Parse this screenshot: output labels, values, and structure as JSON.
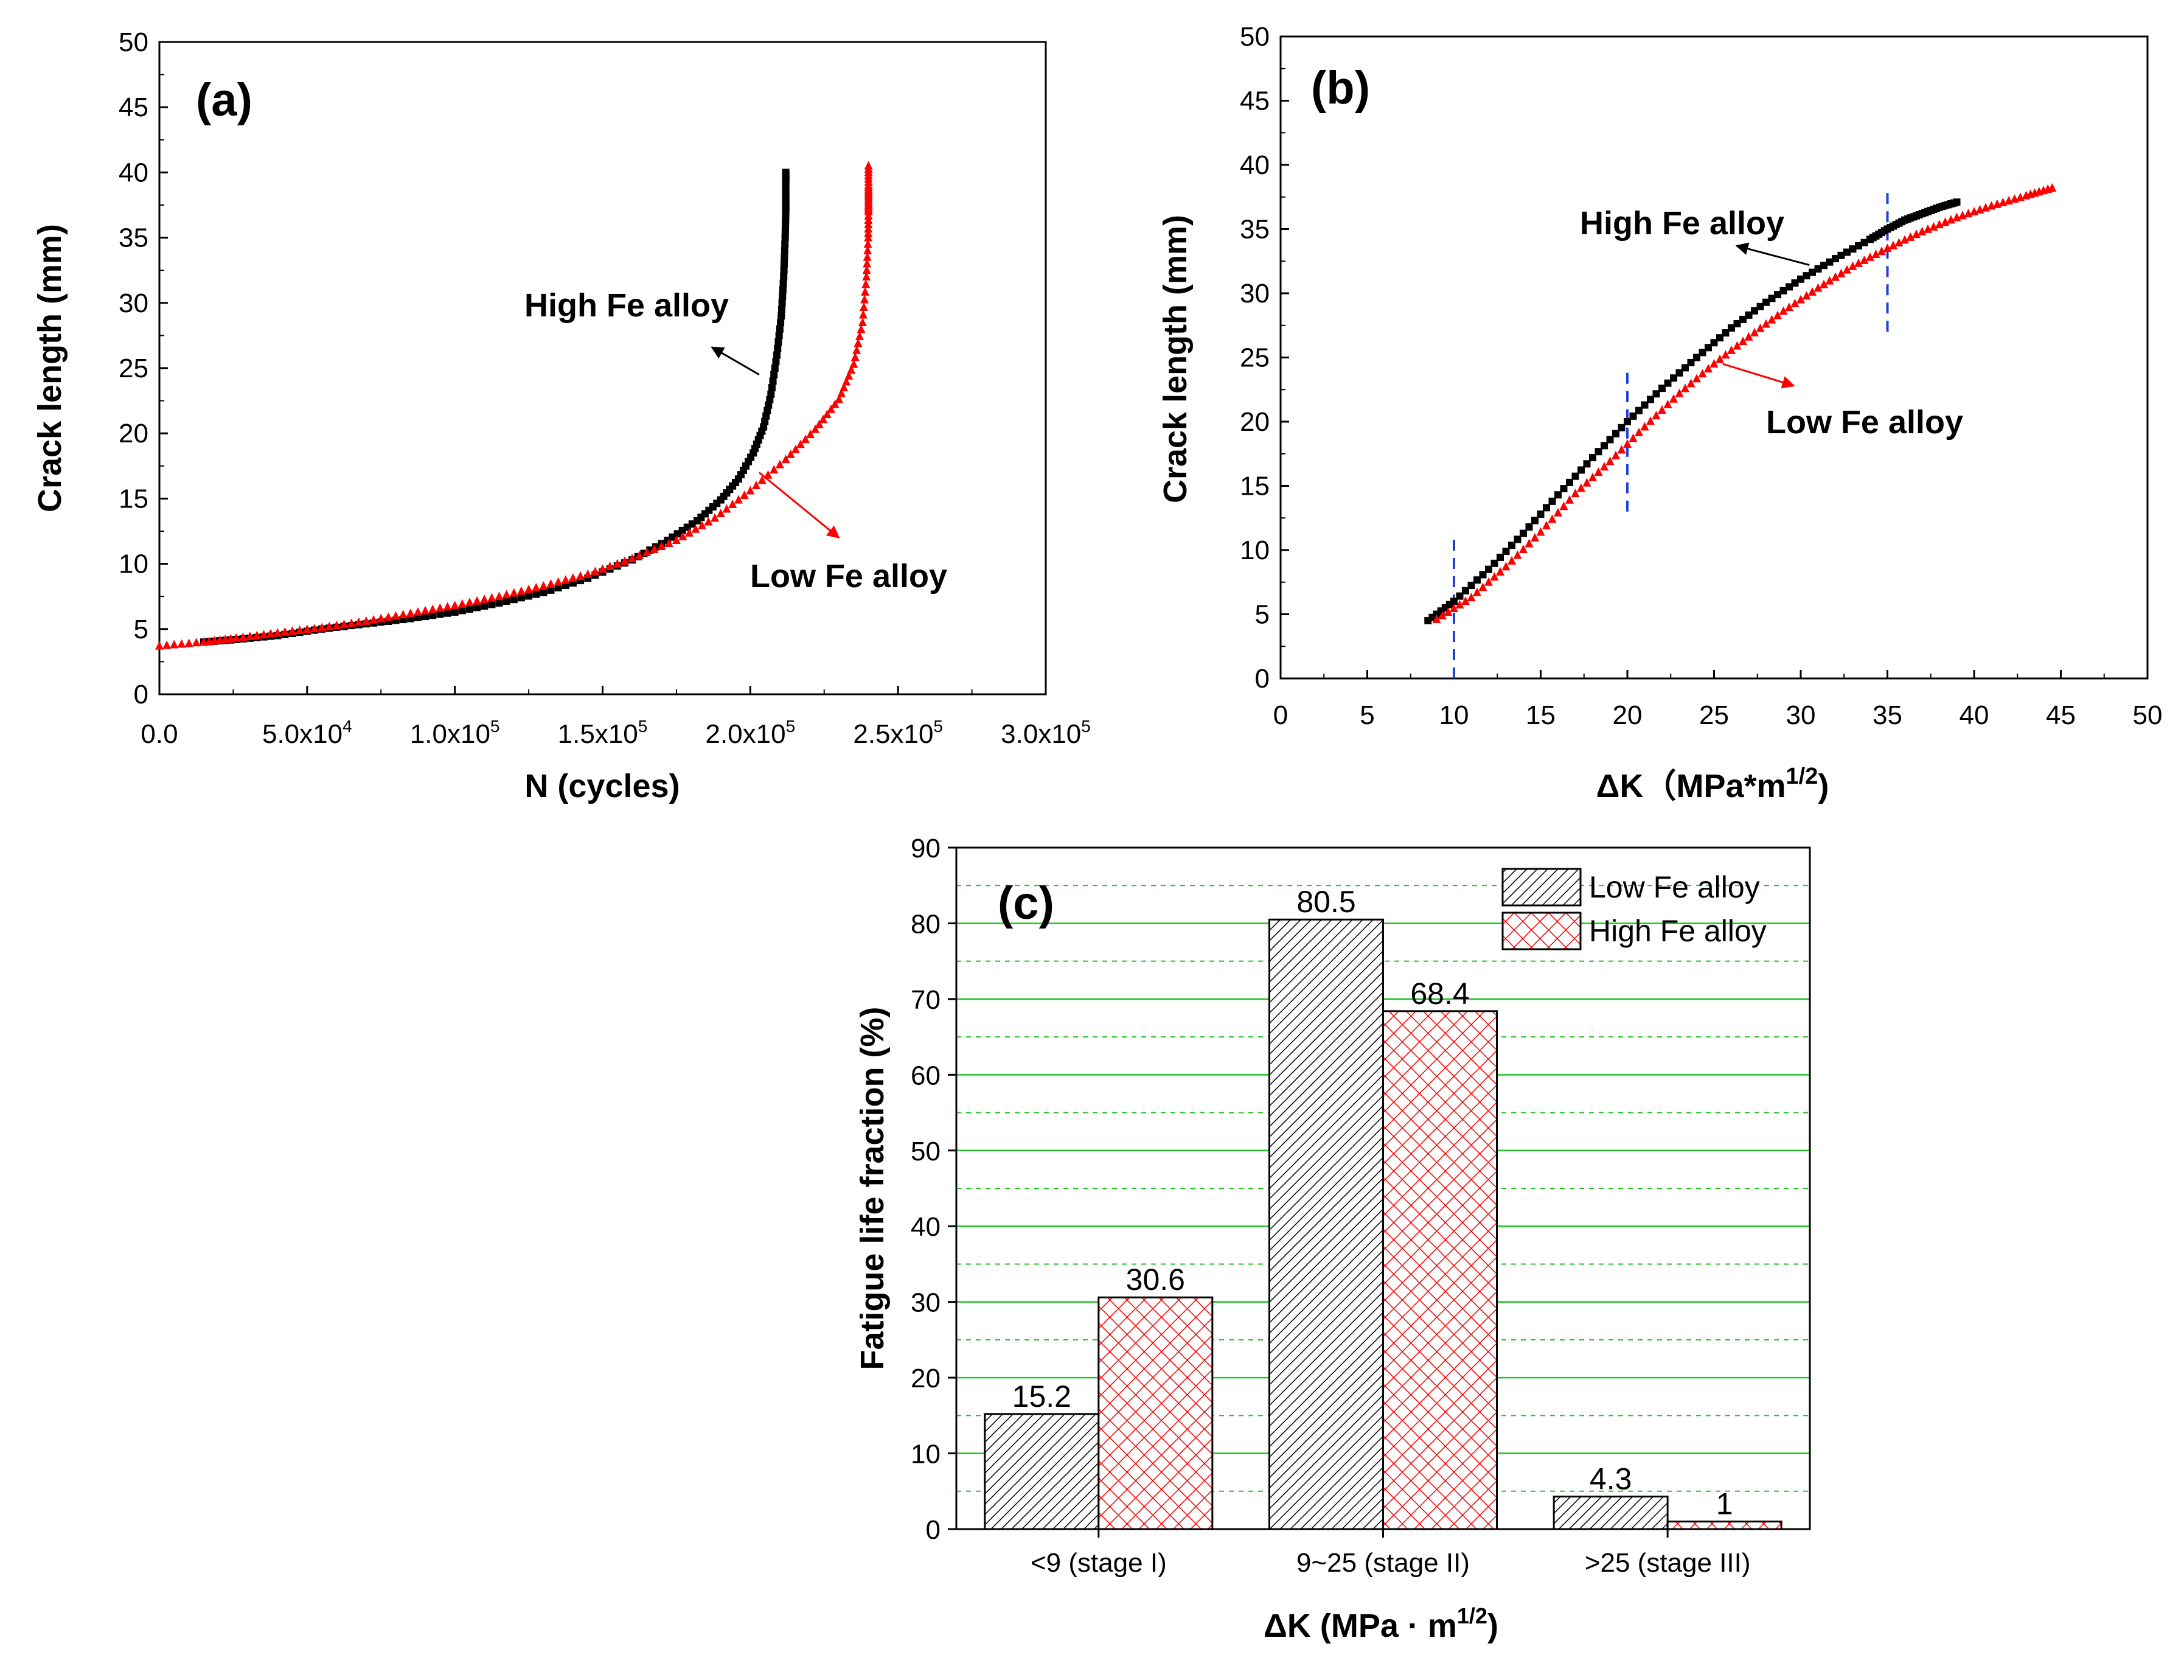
{
  "chart_data": [
    {
      "id": "a",
      "type": "scatter",
      "panel_label": "(a)",
      "xlabel": "N (cycles)",
      "ylabel": "Crack length (mm)",
      "xlim": [
        0,
        300000
      ],
      "ylim": [
        0,
        50
      ],
      "xticks": [
        0,
        50000,
        100000,
        150000,
        200000,
        250000,
        300000
      ],
      "xtick_labels": [
        {
          "base": "0.0",
          "exp": ""
        },
        {
          "base": "5.0x10",
          "exp": "4"
        },
        {
          "base": "1.0x10",
          "exp": "5"
        },
        {
          "base": "1.5x10",
          "exp": "5"
        },
        {
          "base": "2.0x10",
          "exp": "5"
        },
        {
          "base": "2.5x10",
          "exp": "5"
        },
        {
          "base": "3.0x10",
          "exp": "5"
        }
      ],
      "yticks": [
        0,
        5,
        10,
        15,
        20,
        25,
        30,
        35,
        40,
        45,
        50
      ],
      "annotations": [
        {
          "text": "High Fe alloy",
          "color": "#000000",
          "from": [
            203000,
            24.5
          ],
          "to": [
            187000,
            26.6
          ]
        },
        {
          "text": "Low Fe alloy",
          "color": "#ff0000",
          "from": [
            203000,
            17
          ],
          "to": [
            230000,
            12
          ]
        }
      ],
      "series": [
        {
          "name": "High Fe alloy",
          "color": "#000000",
          "marker": "square",
          "points": [
            [
              15000,
              4
            ],
            [
              26000,
              4.2
            ],
            [
              40000,
              4.5
            ],
            [
              55000,
              5
            ],
            [
              70000,
              5.4
            ],
            [
              85000,
              5.8
            ],
            [
              100000,
              6.3
            ],
            [
              115000,
              7
            ],
            [
              130000,
              7.8
            ],
            [
              145000,
              8.9
            ],
            [
              160000,
              10.3
            ],
            [
              172000,
              11.8
            ],
            [
              182000,
              13.3
            ],
            [
              190000,
              14.9
            ],
            [
              196000,
              16.5
            ],
            [
              201000,
              18.5
            ],
            [
              204500,
              20.5
            ],
            [
              207000,
              23
            ],
            [
              209000,
              26
            ],
            [
              210500,
              29
            ],
            [
              211300,
              32
            ],
            [
              211800,
              35
            ],
            [
              212000,
              37
            ],
            [
              212000,
              38
            ],
            [
              212000,
              39.4
            ],
            [
              212000,
              40
            ]
          ]
        },
        {
          "name": "Low Fe alloy",
          "color": "#ff0000",
          "marker": "triangle",
          "points": [
            [
              0,
              3.7
            ],
            [
              15000,
              4
            ],
            [
              26000,
              4.3
            ],
            [
              40000,
              4.7
            ],
            [
              55000,
              5.1
            ],
            [
              70000,
              5.6
            ],
            [
              85000,
              6.2
            ],
            [
              100000,
              6.8
            ],
            [
              115000,
              7.5
            ],
            [
              130000,
              8.3
            ],
            [
              145000,
              9.2
            ],
            [
              160000,
              10.4
            ],
            [
              175000,
              11.8
            ],
            [
              188000,
              13.5
            ],
            [
              200000,
              15.6
            ],
            [
              212000,
              18
            ],
            [
              222000,
              20.3
            ],
            [
              230000,
              22.6
            ],
            [
              235000,
              25.3
            ],
            [
              238000,
              28.5
            ],
            [
              239300,
              32
            ],
            [
              239900,
              35
            ],
            [
              240000,
              37
            ],
            [
              240000,
              38
            ],
            [
              240000,
              39
            ],
            [
              240000,
              40.5
            ]
          ]
        }
      ]
    },
    {
      "id": "b",
      "type": "scatter",
      "panel_label": "(b)",
      "xlabel": "ΔK（MPa*m",
      "xlabel_sup": "1/2",
      "xlabel_end": ")",
      "ylabel": "Crack length (mm)",
      "xlim": [
        0,
        50
      ],
      "ylim": [
        0,
        50
      ],
      "xticks": [
        0,
        5,
        10,
        15,
        20,
        25,
        30,
        35,
        40,
        45,
        50
      ],
      "yticks": [
        0,
        5,
        10,
        15,
        20,
        25,
        30,
        35,
        40,
        45,
        50
      ],
      "vlines": [
        {
          "x": 10,
          "y": [
            0,
            11
          ]
        },
        {
          "x": 20,
          "y": [
            13,
            24
          ]
        },
        {
          "x": 35,
          "y": [
            27,
            38
          ]
        }
      ],
      "annotations": [
        {
          "text": "High Fe alloy",
          "color": "#000000",
          "from": [
            30.5,
            32.2
          ],
          "to": [
            26.3,
            33.7
          ]
        },
        {
          "text": "Low Fe alloy",
          "color": "#ff0000",
          "from": [
            25.5,
            24.5
          ],
          "to": [
            29.6,
            22.8
          ]
        }
      ],
      "series": [
        {
          "name": "High Fe alloy",
          "color": "#000000",
          "marker": "square",
          "points": [
            [
              8.5,
              4.5
            ],
            [
              10,
              6
            ],
            [
              12,
              8.5
            ],
            [
              14,
              11.3
            ],
            [
              16,
              14.3
            ],
            [
              18,
              17.2
            ],
            [
              20,
              20
            ],
            [
              22,
              22.6
            ],
            [
              24,
              25
            ],
            [
              26,
              27.3
            ],
            [
              28,
              29.3
            ],
            [
              30,
              31.1
            ],
            [
              32,
              32.7
            ],
            [
              34,
              34.2
            ],
            [
              35,
              35
            ],
            [
              36,
              35.7
            ],
            [
              37,
              36.2
            ],
            [
              38,
              36.7
            ],
            [
              39,
              37.1
            ]
          ]
        },
        {
          "name": "Low Fe alloy",
          "color": "#ff0000",
          "marker": "triangle",
          "points": [
            [
              9,
              4.6
            ],
            [
              11,
              6.3
            ],
            [
              13,
              8.7
            ],
            [
              15,
              11.4
            ],
            [
              17,
              14.4
            ],
            [
              19,
              16.9
            ],
            [
              21,
              19.6
            ],
            [
              23,
              22.2
            ],
            [
              25,
              24.5
            ],
            [
              27,
              26.6
            ],
            [
              29,
              28.6
            ],
            [
              31,
              30.4
            ],
            [
              33,
              32.1
            ],
            [
              35,
              33.5
            ],
            [
              37,
              34.8
            ],
            [
              39,
              35.9
            ],
            [
              41,
              36.8
            ],
            [
              43,
              37.6
            ],
            [
              44.5,
              38.2
            ]
          ]
        }
      ]
    },
    {
      "id": "c",
      "type": "bar",
      "panel_label": "(c)",
      "xlabel": "ΔK (MPa · m",
      "xlabel_sup": "1/2",
      "xlabel_end": ")",
      "ylabel": "Fatigue  life fraction (%)",
      "ylim": [
        0,
        90
      ],
      "yticks": [
        0,
        10,
        20,
        30,
        40,
        50,
        60,
        70,
        80,
        90
      ],
      "categories": [
        "<9 (stage I)",
        "9~25 (stage II)",
        ">25 (stage III)"
      ],
      "series": [
        {
          "name": "Low Fe alloy",
          "values": [
            15.2,
            80.5,
            4.3
          ],
          "labels": [
            "15.2",
            "80.5",
            "4.3"
          ],
          "pattern": "diagonal-hatch",
          "color": "#000000"
        },
        {
          "name": "High Fe alloy",
          "values": [
            30.6,
            68.4,
            1
          ],
          "labels": [
            "30.6",
            "68.4",
            "1"
          ],
          "pattern": "cross-hatch",
          "color": "#ff0000"
        }
      ],
      "gridlines": "green"
    }
  ]
}
